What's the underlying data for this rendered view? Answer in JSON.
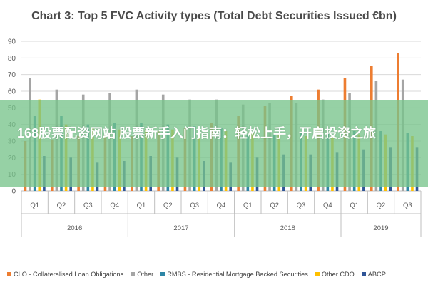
{
  "chart_data": {
    "type": "bar",
    "title": "Chart 3: Top 5 FVC Activity types (Total Debt Securities Issued €bn)",
    "xlabel": "",
    "ylabel": "",
    "ylim": [
      0,
      90
    ],
    "yticks": [
      0,
      10,
      20,
      30,
      40,
      50,
      60,
      70,
      80,
      90
    ],
    "categories": [
      "Q1",
      "Q2",
      "Q3",
      "Q4",
      "Q1",
      "Q2",
      "Q3",
      "Q4",
      "Q1",
      "Q2",
      "Q3",
      "Q4",
      "Q1",
      "Q2",
      "Q3"
    ],
    "year_groups": [
      {
        "label": "2016",
        "count": 4
      },
      {
        "label": "2017",
        "count": 4
      },
      {
        "label": "2018",
        "count": 4
      },
      {
        "label": "2019",
        "count": 3
      }
    ],
    "grid": true,
    "legend_position": "bottom",
    "series": [
      {
        "name": "CLO - Collateralised Loan Obligations",
        "color": "#ed7d31",
        "values": [
          30,
          31,
          33,
          34,
          33,
          36,
          38,
          41,
          45,
          51,
          57,
          61,
          68,
          75,
          83
        ]
      },
      {
        "name": "Other",
        "color": "#a5a5a5",
        "values": [
          68,
          61,
          58,
          59,
          61,
          58,
          55,
          55,
          52,
          53,
          53,
          55,
          59,
          66,
          67
        ]
      },
      {
        "name": "RMBS - Residential Mortgage Backed Securities",
        "color": "#2e86a6",
        "values": [
          45,
          45,
          40,
          41,
          41,
          40,
          39,
          38,
          34,
          34,
          35,
          35,
          36,
          36,
          35
        ]
      },
      {
        "name": "Other CDO",
        "color": "#ffc000",
        "values": [
          55,
          40,
          38,
          37,
          37,
          37,
          36,
          36,
          35,
          35,
          33,
          33,
          34,
          34,
          33
        ]
      },
      {
        "name": "ABCP",
        "color": "#2f5597",
        "values": [
          21,
          20,
          17,
          18,
          21,
          20,
          18,
          17,
          20,
          22,
          22,
          23,
          25,
          26,
          26
        ]
      }
    ]
  },
  "watermark": {
    "text": "168股票配资网站 股票新手入门指南：轻松上手，开启投资之旅"
  }
}
